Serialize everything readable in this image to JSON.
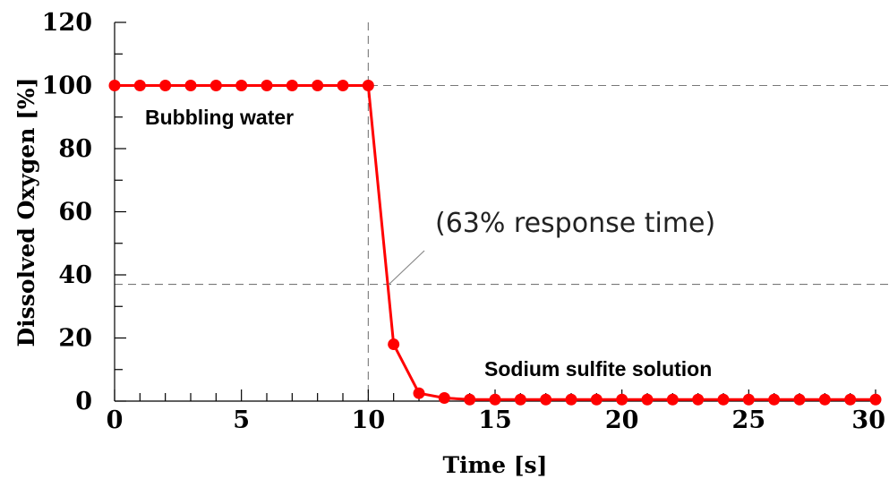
{
  "chart_data": {
    "type": "line",
    "xlabel": "Time [s]",
    "ylabel": "Dissolved Oxygen [%]",
    "xlim": [
      0,
      30
    ],
    "ylim": [
      0,
      120
    ],
    "xticks": [
      0,
      5,
      10,
      15,
      20,
      25,
      30
    ],
    "yticks": [
      0,
      20,
      40,
      60,
      80,
      100,
      120
    ],
    "x_minor_step": 1,
    "y_minor_step": 10,
    "grid": false,
    "legend": "none",
    "series": [
      {
        "color": "#ff0000",
        "x": [
          0,
          1,
          2,
          3,
          4,
          5,
          6,
          7,
          8,
          9,
          10,
          11,
          12,
          13,
          14,
          15,
          16,
          17,
          18,
          19,
          20,
          21,
          22,
          23,
          24,
          25,
          26,
          27,
          28,
          29,
          30
        ],
        "y": [
          100,
          100,
          100,
          100,
          100,
          100,
          100,
          100,
          100,
          100,
          100,
          18,
          2.5,
          1,
          0.5,
          0.5,
          0.5,
          0.5,
          0.5,
          0.5,
          0.5,
          0.5,
          0.5,
          0.5,
          0.5,
          0.5,
          0.5,
          0.5,
          0.5,
          0.5,
          0.5
        ]
      }
    ],
    "reference_lines": [
      {
        "orientation": "horizontal",
        "value": 100,
        "style": "dashed"
      },
      {
        "orientation": "horizontal",
        "value": 37,
        "style": "dashed"
      },
      {
        "orientation": "vertical",
        "value": 10,
        "style": "dashed"
      }
    ],
    "annotations": [
      {
        "text": "Bubbling water",
        "x": 0.5,
        "y": 89
      },
      {
        "text": "Sodium sulfite solution",
        "x": 15,
        "y": 8
      },
      {
        "text": "(63% response time)",
        "x": 12.8,
        "y": 55,
        "points_to": {
          "x": 10.8,
          "y": 37
        }
      }
    ]
  }
}
